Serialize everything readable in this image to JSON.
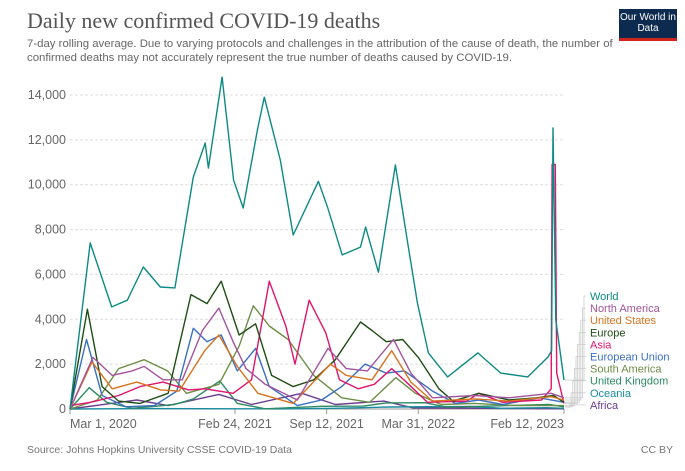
{
  "header": {
    "title": "Daily new confirmed COVID-19 deaths",
    "subtitle": "7-day rolling average. Due to varying protocols and challenges in the attribution of the cause of death, the number of confirmed deaths may not accurately represent the true number of deaths caused by COVID-19.",
    "logo": "Our World in Data"
  },
  "footer": {
    "source": "Source: Johns Hopkins University CSSE COVID-19 Data",
    "license": "CC BY"
  },
  "chart_data": {
    "type": "line",
    "title": "Daily new confirmed COVID-19 deaths",
    "xlim": [
      "2020-03-01",
      "2023-02-12"
    ],
    "ylim": [
      0,
      14000
    ],
    "grid": true,
    "legend_placement": "right",
    "x_ticks": [
      {
        "date": "2020-03-01",
        "label": "Mar 1, 2020"
      },
      {
        "date": "2021-02-24",
        "label": "Feb 24, 2021"
      },
      {
        "date": "2021-09-12",
        "label": "Sep 12, 2021"
      },
      {
        "date": "2022-03-31",
        "label": "Mar 31, 2022"
      },
      {
        "date": "2023-02-12",
        "label": "Feb 12, 2023"
      }
    ],
    "y_ticks": [
      {
        "value": 0,
        "label": "0"
      },
      {
        "value": 2000,
        "label": "2,000"
      },
      {
        "value": 4000,
        "label": "4,000"
      },
      {
        "value": 6000,
        "label": "6,000"
      },
      {
        "value": 8000,
        "label": "8,000"
      },
      {
        "value": 10000,
        "label": "10,000"
      },
      {
        "value": 12000,
        "label": "12,000"
      },
      {
        "value": 14000,
        "label": "14,000"
      }
    ],
    "series": [
      {
        "name": "World",
        "color": "#0e8a84",
        "points": [
          [
            "2020-03-01",
            0
          ],
          [
            "2020-04-14",
            7400
          ],
          [
            "2020-05-31",
            4550
          ],
          [
            "2020-07-04",
            4850
          ],
          [
            "2020-08-08",
            6330
          ],
          [
            "2020-09-14",
            5440
          ],
          [
            "2020-10-16",
            5400
          ],
          [
            "2020-11-25",
            10340
          ],
          [
            "2020-12-21",
            11860
          ],
          [
            "2020-12-28",
            10740
          ],
          [
            "2021-01-27",
            14800
          ],
          [
            "2021-02-21",
            10200
          ],
          [
            "2021-03-14",
            8960
          ],
          [
            "2021-04-14",
            12440
          ],
          [
            "2021-04-29",
            13900
          ],
          [
            "2021-06-03",
            11100
          ],
          [
            "2021-07-01",
            7760
          ],
          [
            "2021-08-25",
            10150
          ],
          [
            "2021-09-14",
            9000
          ],
          [
            "2021-10-16",
            6870
          ],
          [
            "2021-11-25",
            7220
          ],
          [
            "2021-12-06",
            8110
          ],
          [
            "2022-01-03",
            6100
          ],
          [
            "2022-02-09",
            10880
          ],
          [
            "2022-03-08",
            7400
          ],
          [
            "2022-03-29",
            4730
          ],
          [
            "2022-04-22",
            2500
          ],
          [
            "2022-06-03",
            1430
          ],
          [
            "2022-08-08",
            2500
          ],
          [
            "2022-09-27",
            1600
          ],
          [
            "2022-11-25",
            1430
          ],
          [
            "2023-01-08",
            2320
          ],
          [
            "2023-01-16",
            2600
          ],
          [
            "2023-01-19",
            12530
          ],
          [
            "2023-01-25",
            3970
          ],
          [
            "2023-02-12",
            1290
          ]
        ]
      },
      {
        "name": "North America",
        "color": "#a2559c",
        "points": [
          [
            "2020-03-01",
            0
          ],
          [
            "2020-04-20",
            2300
          ],
          [
            "2020-06-01",
            1500
          ],
          [
            "2020-07-15",
            1700
          ],
          [
            "2020-08-10",
            1900
          ],
          [
            "2020-09-20",
            1300
          ],
          [
            "2020-11-01",
            1300
          ],
          [
            "2020-12-15",
            3500
          ],
          [
            "2021-01-20",
            4500
          ],
          [
            "2021-02-20",
            3000
          ],
          [
            "2021-03-20",
            1800
          ],
          [
            "2021-05-01",
            1100
          ],
          [
            "2021-07-10",
            400
          ],
          [
            "2021-09-15",
            2700
          ],
          [
            "2021-10-25",
            1800
          ],
          [
            "2021-12-10",
            1700
          ],
          [
            "2022-02-05",
            3100
          ],
          [
            "2022-03-15",
            1600
          ],
          [
            "2022-05-01",
            500
          ],
          [
            "2022-08-01",
            600
          ],
          [
            "2022-10-15",
            500
          ],
          [
            "2023-01-15",
            700
          ],
          [
            "2023-02-12",
            500
          ]
        ]
      },
      {
        "name": "United States",
        "color": "#d8731e",
        "points": [
          [
            "2020-03-01",
            0
          ],
          [
            "2020-04-18",
            2100
          ],
          [
            "2020-06-01",
            900
          ],
          [
            "2020-07-25",
            1200
          ],
          [
            "2020-09-15",
            850
          ],
          [
            "2020-10-25",
            800
          ],
          [
            "2020-12-20",
            2600
          ],
          [
            "2021-01-20",
            3300
          ],
          [
            "2021-03-01",
            1900
          ],
          [
            "2021-04-15",
            700
          ],
          [
            "2021-07-01",
            250
          ],
          [
            "2021-09-20",
            2000
          ],
          [
            "2021-10-25",
            1500
          ],
          [
            "2021-12-20",
            1300
          ],
          [
            "2022-02-01",
            2600
          ],
          [
            "2022-03-15",
            1200
          ],
          [
            "2022-05-01",
            350
          ],
          [
            "2022-08-01",
            450
          ],
          [
            "2022-10-15",
            350
          ],
          [
            "2023-01-15",
            550
          ],
          [
            "2023-02-12",
            400
          ]
        ]
      },
      {
        "name": "Europe",
        "color": "#1f4d14",
        "points": [
          [
            "2020-03-01",
            0
          ],
          [
            "2020-04-08",
            4450
          ],
          [
            "2020-05-10",
            1000
          ],
          [
            "2020-06-15",
            350
          ],
          [
            "2020-08-01",
            250
          ],
          [
            "2020-10-01",
            700
          ],
          [
            "2020-11-20",
            5100
          ],
          [
            "2020-12-25",
            4700
          ],
          [
            "2021-01-25",
            5700
          ],
          [
            "2021-03-05",
            3300
          ],
          [
            "2021-04-10",
            3800
          ],
          [
            "2021-05-15",
            1500
          ],
          [
            "2021-07-01",
            1000
          ],
          [
            "2021-08-15",
            1300
          ],
          [
            "2021-10-01",
            2200
          ],
          [
            "2021-11-25",
            3880
          ],
          [
            "2021-12-20",
            3500
          ],
          [
            "2022-01-20",
            3000
          ],
          [
            "2022-02-25",
            3100
          ],
          [
            "2022-03-31",
            2300
          ],
          [
            "2022-05-15",
            900
          ],
          [
            "2022-06-15",
            350
          ],
          [
            "2022-08-10",
            700
          ],
          [
            "2022-10-15",
            400
          ],
          [
            "2022-12-15",
            500
          ],
          [
            "2023-01-20",
            600
          ],
          [
            "2023-02-12",
            300
          ]
        ]
      },
      {
        "name": "Asia",
        "color": "#e0156b",
        "points": [
          [
            "2020-03-01",
            150
          ],
          [
            "2020-04-15",
            300
          ],
          [
            "2020-06-15",
            600
          ],
          [
            "2020-08-01",
            1000
          ],
          [
            "2020-09-20",
            1200
          ],
          [
            "2020-11-15",
            850
          ],
          [
            "2020-12-20",
            900
          ],
          [
            "2021-02-20",
            700
          ],
          [
            "2021-04-01",
            1300
          ],
          [
            "2021-05-10",
            5700
          ],
          [
            "2021-06-15",
            3700
          ],
          [
            "2021-07-05",
            2000
          ],
          [
            "2021-08-05",
            4850
          ],
          [
            "2021-09-10",
            3400
          ],
          [
            "2021-10-10",
            1300
          ],
          [
            "2021-11-20",
            900
          ],
          [
            "2021-12-25",
            1100
          ],
          [
            "2022-02-01",
            1800
          ],
          [
            "2022-03-10",
            1100
          ],
          [
            "2022-04-20",
            300
          ],
          [
            "2022-07-15",
            350
          ],
          [
            "2022-08-10",
            700
          ],
          [
            "2022-10-01",
            300
          ],
          [
            "2022-12-25",
            400
          ],
          [
            "2023-01-15",
            900
          ],
          [
            "2023-01-17",
            10900
          ],
          [
            "2023-01-24",
            10900
          ],
          [
            "2023-01-27",
            1600
          ],
          [
            "2023-02-12",
            250
          ]
        ]
      },
      {
        "name": "European Union",
        "color": "#3a70c0",
        "points": [
          [
            "2020-03-01",
            0
          ],
          [
            "2020-04-06",
            3100
          ],
          [
            "2020-05-10",
            600
          ],
          [
            "2020-07-01",
            100
          ],
          [
            "2020-09-01",
            150
          ],
          [
            "2020-10-20",
            800
          ],
          [
            "2020-11-25",
            3600
          ],
          [
            "2020-12-25",
            3000
          ],
          [
            "2021-01-25",
            3300
          ],
          [
            "2021-03-01",
            1700
          ],
          [
            "2021-04-10",
            2700
          ],
          [
            "2021-05-10",
            1000
          ],
          [
            "2021-07-10",
            150
          ],
          [
            "2021-09-01",
            400
          ],
          [
            "2021-10-15",
            1000
          ],
          [
            "2021-12-05",
            2000
          ],
          [
            "2022-01-20",
            1600
          ],
          [
            "2022-03-01",
            1700
          ],
          [
            "2022-05-01",
            800
          ],
          [
            "2022-06-20",
            250
          ],
          [
            "2022-08-10",
            400
          ],
          [
            "2022-10-01",
            200
          ],
          [
            "2022-12-20",
            500
          ],
          [
            "2023-02-12",
            300
          ]
        ]
      },
      {
        "name": "South America",
        "color": "#6d8e46",
        "points": [
          [
            "2020-03-01",
            0
          ],
          [
            "2020-04-30",
            400
          ],
          [
            "2020-06-15",
            1800
          ],
          [
            "2020-08-10",
            2200
          ],
          [
            "2020-09-30",
            1700
          ],
          [
            "2020-11-10",
            700
          ],
          [
            "2021-01-20",
            1100
          ],
          [
            "2021-03-05",
            2800
          ],
          [
            "2021-04-05",
            4600
          ],
          [
            "2021-05-10",
            3700
          ],
          [
            "2021-06-20",
            3100
          ],
          [
            "2021-08-15",
            1500
          ],
          [
            "2021-10-15",
            500
          ],
          [
            "2021-12-15",
            300
          ],
          [
            "2022-02-10",
            1400
          ],
          [
            "2022-03-25",
            700
          ],
          [
            "2022-05-20",
            200
          ],
          [
            "2022-08-01",
            250
          ],
          [
            "2022-11-01",
            150
          ],
          [
            "2023-02-12",
            150
          ]
        ]
      },
      {
        "name": "United Kingdom",
        "color": "#2c8a63",
        "points": [
          [
            "2020-03-01",
            0
          ],
          [
            "2020-04-12",
            950
          ],
          [
            "2020-05-20",
            300
          ],
          [
            "2020-07-15",
            30
          ],
          [
            "2020-10-15",
            200
          ],
          [
            "2020-11-25",
            450
          ],
          [
            "2021-01-22",
            1250
          ],
          [
            "2021-03-01",
            250
          ],
          [
            "2021-05-01",
            10
          ],
          [
            "2021-09-01",
            120
          ],
          [
            "2021-12-01",
            130
          ],
          [
            "2022-01-20",
            270
          ],
          [
            "2022-04-15",
            280
          ],
          [
            "2022-06-01",
            80
          ],
          [
            "2023-01-10",
            200
          ],
          [
            "2023-02-12",
            100
          ]
        ]
      },
      {
        "name": "Oceania",
        "color": "#1b8ca0",
        "points": [
          [
            "2020-03-01",
            0
          ],
          [
            "2020-08-15",
            20
          ],
          [
            "2021-06-01",
            5
          ],
          [
            "2021-10-01",
            30
          ],
          [
            "2022-01-25",
            90
          ],
          [
            "2022-07-25",
            110
          ],
          [
            "2022-10-01",
            30
          ],
          [
            "2023-01-05",
            60
          ],
          [
            "2023-02-12",
            30
          ]
        ]
      },
      {
        "name": "Africa",
        "color": "#6b3d8f",
        "points": [
          [
            "2020-03-01",
            0
          ],
          [
            "2020-07-25",
            400
          ],
          [
            "2020-10-01",
            150
          ],
          [
            "2021-01-20",
            650
          ],
          [
            "2021-04-01",
            200
          ],
          [
            "2021-07-20",
            700
          ],
          [
            "2021-10-01",
            200
          ],
          [
            "2022-01-15",
            350
          ],
          [
            "2022-03-20",
            50
          ],
          [
            "2023-02-12",
            10
          ]
        ]
      }
    ]
  }
}
